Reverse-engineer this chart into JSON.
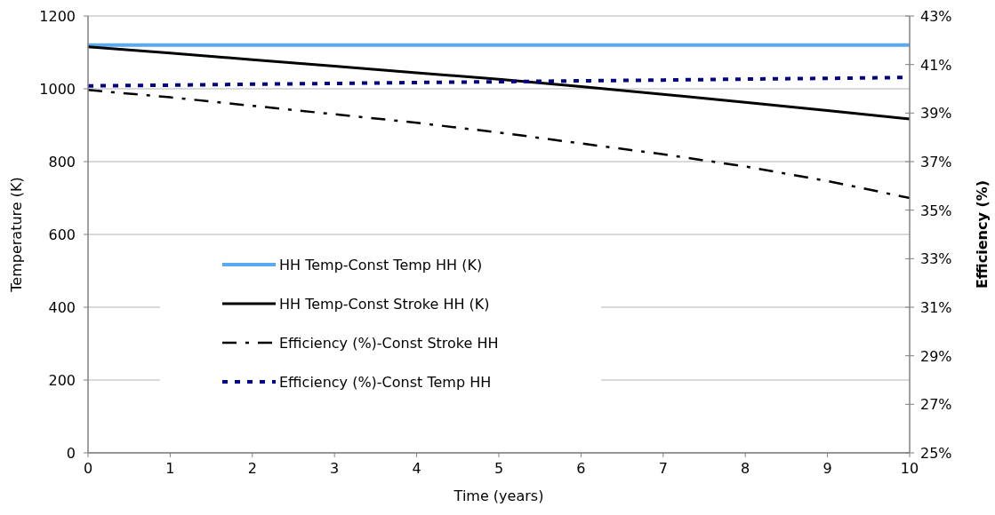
{
  "chart_data": {
    "type": "line",
    "xlabel": "Time (years)",
    "ylabel": "Temperature (K)",
    "y2label": "Efficiency (%)",
    "x": [
      0,
      1,
      2,
      3,
      4,
      5,
      6,
      7,
      8,
      9,
      10
    ],
    "xlim": [
      0,
      10
    ],
    "xticks": [
      0,
      1,
      2,
      3,
      4,
      5,
      6,
      7,
      8,
      9,
      10
    ],
    "ylim": [
      0,
      1200
    ],
    "yticks": [
      0,
      200,
      400,
      600,
      800,
      1000,
      1200
    ],
    "y2lim": [
      25,
      43
    ],
    "y2ticks": [
      {
        "value": 25,
        "label": "25%"
      },
      {
        "value": 27,
        "label": "27%"
      },
      {
        "value": 29,
        "label": "29%"
      },
      {
        "value": 31,
        "label": "31%"
      },
      {
        "value": 33,
        "label": "33%"
      },
      {
        "value": 35,
        "label": "35%"
      },
      {
        "value": 37,
        "label": "37%"
      },
      {
        "value": 39,
        "label": "39%"
      },
      {
        "value": 41,
        "label": "41%"
      },
      {
        "value": 43,
        "label": "43%"
      }
    ],
    "grid": "y",
    "legend": "left",
    "marker": "none",
    "series": [
      {
        "name": "HH Temp-Const Temp HH (K)",
        "color": "#5aaaf2",
        "line_style": "solid",
        "values": [
          1120,
          1120,
          1120,
          1120,
          1120,
          1120,
          1120,
          1120,
          1120,
          1120,
          1120
        ]
      },
      {
        "name": "HH Temp-Const Stroke HH (K)",
        "color": "#000000",
        "line_style": "solid",
        "values": [
          1115,
          1098,
          1080,
          1062,
          1044,
          1026,
          1006,
          985,
          963,
          940,
          917
        ]
      },
      {
        "name": "Efficiency (%)-Const Stroke HH",
        "color": "#000000",
        "line_style": "dashdot",
        "axis": "y2",
        "values": [
          39.95,
          39.65,
          39.3,
          38.95,
          38.6,
          38.2,
          37.75,
          37.3,
          36.8,
          36.2,
          35.5
        ]
      },
      {
        "name": "Efficiency (%)-Const Temp HH",
        "color": "#00008b",
        "line_style": "dotted",
        "axis": "y2",
        "values": [
          40.12,
          40.15,
          40.19,
          40.22,
          40.26,
          40.29,
          40.33,
          40.36,
          40.4,
          40.43,
          40.47
        ]
      }
    ]
  }
}
